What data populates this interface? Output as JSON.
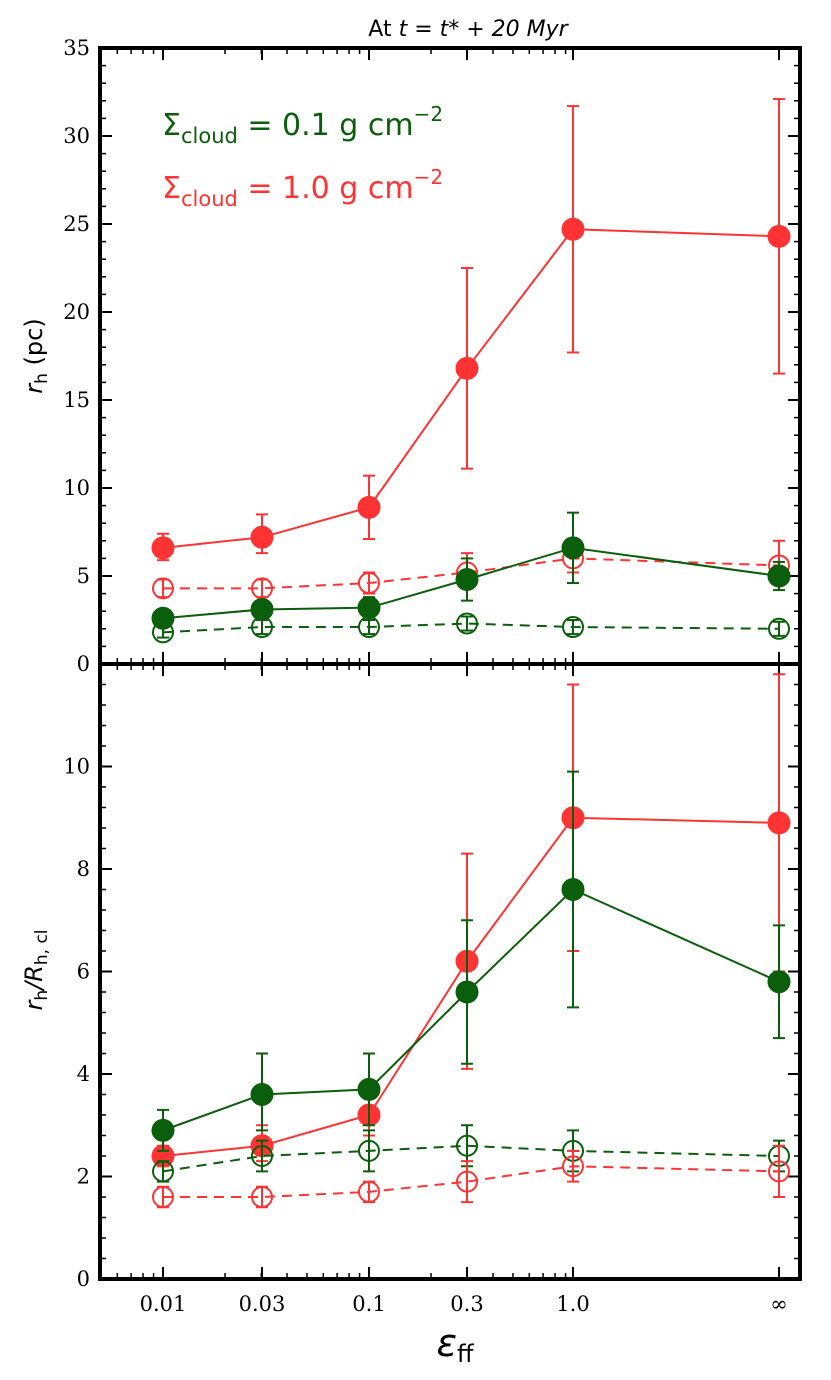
{
  "colors": {
    "green": "#0b5e0b",
    "red": "#ff3333",
    "axis": "#000000"
  },
  "chart_data": {
    "type": "line",
    "title_prefix": "At ",
    "title_math": "t = t* + 20 Myr",
    "xlabel": "ε_ff",
    "xlabel_main": "ε",
    "xlabel_sub": "ff",
    "categories": [
      "0.01",
      "0.03",
      "0.1",
      "0.3",
      "1.0",
      "∞"
    ],
    "x": [
      0.01,
      0.03,
      0.1,
      0.3,
      1.0,
      100
    ],
    "legend": [
      {
        "name": "Σcloud = 0.1 g cm−2",
        "sym": "Σ",
        "sub": "cloud",
        "eq": " = 0.1 g cm",
        "sup": "−2",
        "color": "green"
      },
      {
        "name": "Σcloud = 1.0 g cm−2",
        "sym": "Σ",
        "sub": "cloud",
        "eq": " = 1.0 g cm",
        "sup": "−2",
        "color": "red"
      }
    ],
    "panels": [
      {
        "ylabel": "r_h (pc)",
        "ylabel_main": "r",
        "ylabel_sub": "h",
        "ylabel_tail": " (pc)",
        "ylim": [
          0,
          35
        ],
        "yticks": [
          0,
          5,
          10,
          15,
          20,
          25,
          30,
          35
        ],
        "series": [
          {
            "name": "Σcloud = 1.0 solid",
            "color": "red",
            "filled": true,
            "dashed": false,
            "values": [
              6.6,
              7.2,
              8.9,
              16.8,
              24.7,
              24.3
            ],
            "err_low": [
              0.7,
              0.9,
              1.8,
              5.7,
              7.0,
              7.8
            ],
            "err_high": [
              0.8,
              1.3,
              1.8,
              5.7,
              7.0,
              7.8
            ]
          },
          {
            "name": "Σcloud = 1.0 open",
            "color": "red",
            "filled": false,
            "dashed": true,
            "values": [
              4.3,
              4.3,
              4.6,
              5.2,
              6.0,
              5.6
            ],
            "err_low": [
              0.5,
              0.5,
              0.6,
              0.5,
              0.8,
              0.7
            ],
            "err_high": [
              0.5,
              0.5,
              0.6,
              1.1,
              0.9,
              1.4
            ]
          },
          {
            "name": "Σcloud = 0.1 solid",
            "color": "green",
            "filled": true,
            "dashed": false,
            "values": [
              2.6,
              3.1,
              3.2,
              4.8,
              6.6,
              5.0
            ],
            "err_low": [
              0.3,
              0.5,
              0.5,
              1.2,
              2.0,
              0.8
            ],
            "err_high": [
              0.4,
              0.5,
              0.6,
              1.2,
              2.0,
              0.8
            ]
          },
          {
            "name": "Σcloud = 0.1 open",
            "color": "green",
            "filled": false,
            "dashed": true,
            "values": [
              1.8,
              2.1,
              2.1,
              2.3,
              2.1,
              2.0
            ],
            "err_low": [
              0.3,
              0.4,
              0.4,
              0.4,
              0.4,
              0.4
            ],
            "err_high": [
              0.3,
              0.4,
              0.4,
              0.4,
              0.4,
              0.4
            ]
          }
        ]
      },
      {
        "ylabel": "r_h / R_h,cl",
        "ylabel_main": "r",
        "ylabel_sub": "h",
        "ylabel_mid": "/R",
        "ylabel_sub2": "h, cl",
        "ylim": [
          0,
          12
        ],
        "yticks": [
          0,
          2,
          4,
          6,
          8,
          10
        ],
        "series": [
          {
            "name": "Σcloud = 1.0 solid",
            "color": "red",
            "filled": true,
            "dashed": false,
            "values": [
              2.4,
              2.6,
              3.2,
              6.2,
              9.0,
              8.9
            ],
            "err_low": [
              0.2,
              0.3,
              0.4,
              2.1,
              2.6,
              2.9
            ],
            "err_high": [
              0.2,
              0.4,
              0.4,
              2.1,
              2.6,
              2.9
            ]
          },
          {
            "name": "Σcloud = 0.1 solid",
            "color": "green",
            "filled": true,
            "dashed": false,
            "values": [
              2.9,
              3.6,
              3.7,
              5.6,
              7.6,
              5.8
            ],
            "err_low": [
              0.4,
              0.7,
              0.7,
              1.4,
              2.3,
              1.1
            ],
            "err_high": [
              0.4,
              0.8,
              0.7,
              1.4,
              2.3,
              1.1
            ]
          },
          {
            "name": "Σcloud = 0.1 open",
            "color": "green",
            "filled": false,
            "dashed": true,
            "values": [
              2.1,
              2.4,
              2.5,
              2.6,
              2.5,
              2.4
            ],
            "err_low": [
              0.2,
              0.3,
              0.4,
              0.4,
              0.4,
              0.3
            ],
            "err_high": [
              0.2,
              0.3,
              0.4,
              0.4,
              0.4,
              0.3
            ]
          },
          {
            "name": "Σcloud = 1.0 open",
            "color": "red",
            "filled": false,
            "dashed": true,
            "values": [
              1.6,
              1.6,
              1.7,
              1.9,
              2.2,
              2.1
            ],
            "err_low": [
              0.2,
              0.2,
              0.2,
              0.4,
              0.3,
              0.5
            ],
            "err_high": [
              0.2,
              0.2,
              0.2,
              0.4,
              0.3,
              0.5
            ]
          }
        ]
      }
    ]
  }
}
